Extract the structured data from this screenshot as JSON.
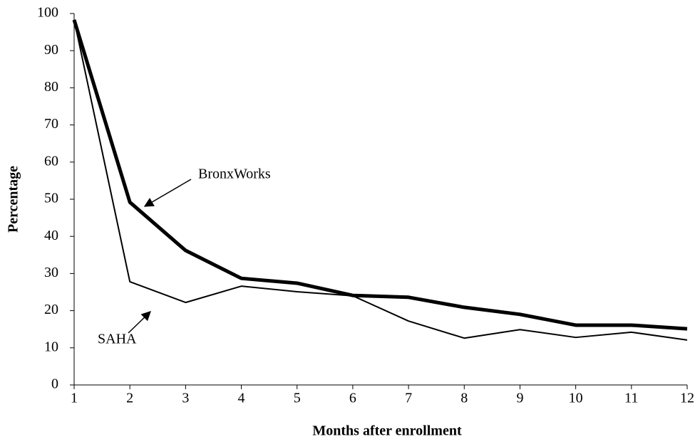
{
  "chart_data": {
    "type": "line",
    "x_label": "Months after enrollment",
    "y_label": "Percentage",
    "x": [
      1,
      2,
      3,
      4,
      5,
      6,
      7,
      8,
      9,
      10,
      11,
      12
    ],
    "series": [
      {
        "name": "BronxWorks",
        "color": "#000000",
        "values": [
          98.3,
          49.2,
          36.2,
          28.7,
          27.4,
          24.1,
          23.6,
          20.9,
          19,
          16.1,
          16.1,
          15.1
        ]
      },
      {
        "name": "SAHA",
        "color": "#000000",
        "values": [
          98.3,
          27.8,
          22.2,
          26.6,
          25.1,
          24,
          17.2,
          12.6,
          14.9,
          12.8,
          14.2,
          12.1
        ]
      }
    ],
    "xlim": [
      1,
      12
    ],
    "xticks": [
      1,
      2,
      3,
      4,
      5,
      6,
      7,
      8,
      9,
      10,
      11,
      12
    ],
    "ylim": [
      0,
      100
    ],
    "yticks": [
      0,
      10,
      20,
      30,
      40,
      50,
      60,
      70,
      80,
      90,
      100
    ],
    "grid": false
  }
}
